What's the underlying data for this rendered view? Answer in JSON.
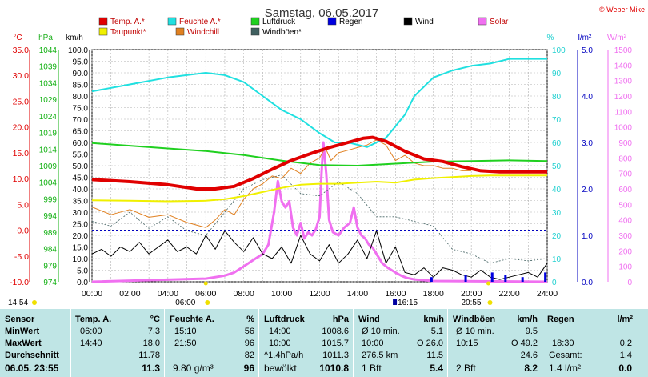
{
  "title": "Samstag, 06.05.2017",
  "copyright": "© Weber Mike",
  "legend": [
    {
      "label": "Temp. A.*",
      "color": "#e00000"
    },
    {
      "label": "Feuchte A.*",
      "color": "#20e0e0"
    },
    {
      "label": "Luftdruck",
      "color": "#20d020"
    },
    {
      "label": "Regen",
      "color": "#0000e0"
    },
    {
      "label": "Wind",
      "color": "#000000"
    },
    {
      "label": "Solar",
      "color": "#f070f0"
    },
    {
      "label": "Taupunkt*",
      "color": "#f0f000"
    },
    {
      "label": "Windchill",
      "color": "#e08020"
    },
    {
      "label": "Windböen*",
      "color": "#406060"
    }
  ],
  "axis_units": {
    "temp": "°C",
    "press": "hPa",
    "wind": "km/h",
    "hum": "%",
    "rain": "l/m²",
    "solar": "W/m²"
  },
  "chart_data": {
    "type": "line",
    "x_ticks": [
      "00:00",
      "02:00",
      "04:00",
      "06:00",
      "08:00",
      "10:00",
      "12:00",
      "14:00",
      "16:00",
      "18:00",
      "20:00",
      "22:00",
      "24:00"
    ],
    "axes": {
      "temp": {
        "min": -10,
        "max": 35,
        "ticks": [
          "35.0",
          "30.0",
          "25.0",
          "20.0",
          "15.0",
          "10.0",
          "5.0",
          "0.0",
          "-5.0",
          "-10.0"
        ]
      },
      "press": {
        "min": 974,
        "max": 1044,
        "ticks": [
          "1044",
          "1039",
          "1034",
          "1029",
          "1024",
          "1019",
          "1014",
          "1009",
          "1004",
          "999",
          "994",
          "989",
          "984",
          "979",
          "974"
        ]
      },
      "wind": {
        "min": 0,
        "max": 100,
        "ticks": [
          "100.0",
          "95.0",
          "90.0",
          "85.0",
          "80.0",
          "75.0",
          "70.0",
          "65.0",
          "60.0",
          "55.0",
          "50.0",
          "45.0",
          "40.0",
          "35.0",
          "30.0",
          "25.0",
          "20.0",
          "15.0",
          "10.0",
          "5.0",
          "0.0"
        ]
      },
      "hum": {
        "min": 0,
        "max": 100,
        "ticks": [
          "100",
          "90",
          "80",
          "70",
          "60",
          "50",
          "40",
          "30",
          "20",
          "10",
          "0"
        ]
      },
      "rain": {
        "min": 0,
        "max": 5,
        "ticks": [
          "5.0",
          "4.0",
          "3.0",
          "2.0",
          "1.0",
          "0.0"
        ]
      },
      "solar": {
        "min": 0,
        "max": 1500,
        "ticks": [
          "1500",
          "1400",
          "1300",
          "1200",
          "1100",
          "1000",
          "900",
          "800",
          "700",
          "600",
          "500",
          "400",
          "300",
          "200",
          "100",
          "0"
        ]
      }
    },
    "series": [
      {
        "name": "Temp. A.*",
        "axis": "temp",
        "x": [
          0,
          2,
          4,
          5.5,
          6.5,
          7.5,
          8.5,
          9.5,
          10.5,
          11.5,
          12.5,
          13.5,
          14.3,
          14.8,
          15.5,
          16.5,
          17.5,
          18.5,
          19.5,
          20.5,
          21.5,
          22.5,
          24
        ],
        "y": [
          9.8,
          9.4,
          8.8,
          8.0,
          8.0,
          8.5,
          10.0,
          11.8,
          13.5,
          14.8,
          16.0,
          17.0,
          17.8,
          18.0,
          17.2,
          15.3,
          13.8,
          13.3,
          12.3,
          11.5,
          11.3,
          11.3,
          11.3
        ]
      },
      {
        "name": "Feuchte A.*",
        "axis": "hum",
        "x": [
          0,
          2,
          4,
          6,
          7,
          8,
          9,
          10,
          11,
          12,
          12.8,
          13.5,
          14.5,
          15.5,
          16.5,
          17,
          18,
          19,
          20,
          21,
          22,
          23,
          24
        ],
        "y": [
          82,
          85,
          88,
          90,
          89,
          86,
          80,
          74,
          70,
          64,
          60,
          60,
          58,
          62,
          72,
          80,
          88,
          91,
          93,
          94,
          96,
          96,
          96
        ]
      },
      {
        "name": "Luftdruck",
        "axis": "press",
        "x": [
          0,
          2,
          4,
          6,
          8,
          10,
          12,
          14,
          16,
          18,
          20,
          22,
          24
        ],
        "y": [
          1015.8,
          1015.0,
          1014.2,
          1013.4,
          1012.2,
          1010.5,
          1009.2,
          1009.0,
          1009.6,
          1010.2,
          1010.4,
          1010.6,
          1010.4
        ]
      },
      {
        "name": "Taupunkt*",
        "axis": "temp",
        "x": [
          0,
          2,
          4,
          6,
          7,
          8,
          9,
          10,
          11,
          12,
          13,
          14,
          15,
          16,
          17,
          18,
          19,
          20,
          21,
          22,
          23,
          24
        ],
        "y": [
          5.8,
          5.7,
          5.6,
          5.7,
          6.0,
          6.6,
          7.4,
          8.2,
          8.8,
          9.0,
          9.0,
          9.2,
          9.4,
          9.2,
          9.8,
          10.1,
          10.3,
          10.5,
          10.6,
          10.6,
          10.6,
          10.6
        ]
      },
      {
        "name": "Windchill",
        "axis": "temp",
        "x": [
          0,
          1,
          2,
          3,
          4,
          5,
          6,
          6.5,
          7,
          7.5,
          8,
          8.5,
          9,
          9.5,
          10,
          10.5,
          11,
          11.5,
          12,
          12.3,
          12.6,
          13,
          13.5,
          14,
          14.5,
          15,
          15.5,
          16,
          16.5,
          17,
          17.5,
          18,
          18.5,
          19,
          19.5,
          20
        ],
        "y": [
          4.5,
          3.0,
          4.0,
          2.5,
          3.0,
          1.5,
          0.5,
          2.0,
          4.0,
          3.0,
          6.0,
          8.0,
          9.0,
          10.5,
          10.0,
          12.0,
          11.0,
          13.0,
          14.0,
          16.0,
          13.5,
          15.0,
          15.5,
          16.0,
          16.5,
          17.5,
          16.5,
          13.5,
          14.5,
          13.0,
          12.5,
          12.5,
          12.0,
          12.0,
          11.5,
          11.5
        ]
      },
      {
        "name": "Wind",
        "axis": "wind",
        "x": [
          0,
          0.5,
          1,
          1.5,
          2,
          2.5,
          3,
          3.5,
          4,
          4.5,
          5,
          5.5,
          6,
          6.5,
          7,
          7.5,
          8,
          8.5,
          9,
          9.5,
          10,
          10.5,
          11,
          11.5,
          12,
          12.5,
          13,
          13.5,
          14,
          14.5,
          15,
          15.5,
          16,
          16.5,
          17,
          17.5,
          18,
          18.5,
          19,
          19.5,
          20,
          20.5,
          21,
          21.5,
          22,
          22.5,
          23,
          23.5,
          24
        ],
        "y": [
          12,
          14,
          11,
          15,
          13,
          17,
          12,
          15,
          18,
          13,
          15,
          12,
          20,
          14,
          22,
          17,
          13,
          19,
          12,
          10,
          15,
          8,
          20,
          12,
          9,
          16,
          8,
          12,
          18,
          10,
          22,
          8,
          15,
          4,
          3,
          6,
          2,
          6,
          5,
          3,
          2,
          5,
          2,
          1,
          2,
          3,
          4,
          2,
          8
        ]
      },
      {
        "name": "Windböen*",
        "axis": "wind",
        "x": [
          0,
          1,
          2,
          3,
          4,
          5,
          6,
          7,
          8,
          9,
          10,
          11,
          12,
          13,
          14,
          15,
          16,
          17,
          18,
          19,
          20,
          21,
          22,
          23,
          24
        ],
        "y": [
          26,
          24,
          30,
          23,
          28,
          22,
          20,
          30,
          40,
          44,
          46,
          38,
          37,
          43,
          38,
          28,
          28,
          26,
          24,
          14,
          12,
          8,
          10,
          9,
          10
        ]
      },
      {
        "name": "Solar",
        "axis": "solar",
        "x": [
          0,
          6,
          7,
          7.5,
          8,
          8.5,
          9,
          9.3,
          9.6,
          9.8,
          10,
          10.2,
          10.4,
          10.6,
          10.8,
          11,
          11.2,
          11.4,
          11.6,
          11.8,
          12,
          12.1,
          12.2,
          12.35,
          12.5,
          12.7,
          13,
          13.3,
          13.6,
          13.8,
          14,
          14.2,
          14.4,
          14.6,
          14.8,
          15,
          15.3,
          15.6,
          16,
          16.3,
          16.6,
          17,
          18,
          24
        ],
        "y": [
          0,
          20,
          40,
          60,
          100,
          140,
          180,
          240,
          450,
          650,
          520,
          480,
          520,
          350,
          300,
          380,
          280,
          320,
          300,
          340,
          420,
          700,
          900,
          700,
          400,
          320,
          300,
          350,
          380,
          480,
          350,
          300,
          280,
          240,
          220,
          180,
          120,
          90,
          60,
          40,
          25,
          15,
          5,
          0
        ]
      }
    ],
    "rain": {
      "axis": "rain",
      "x": [
        17.9,
        19.7,
        21.1,
        21.8,
        22.7,
        23.9
      ],
      "y": [
        0.1,
        0.15,
        0.2,
        0.15,
        0.1,
        0.2
      ]
    }
  },
  "markers": {
    "sunrise_left": "14:54",
    "sunrise": "06:00",
    "sunset": "16:15",
    "moon": "20:55"
  },
  "table": {
    "headers": {
      "sensor": "Sensor",
      "temp": "Temp. A.",
      "temp_unit": "°C",
      "hum": "Feuchte A.",
      "hum_unit": "%",
      "press": "Luftdruck",
      "press_unit": "hPa",
      "wind": "Wind",
      "wind_unit": "km/h",
      "gust": "Windböen",
      "gust_unit": "km/h",
      "rain": "Regen",
      "rain_unit": "l/m²"
    },
    "min": {
      "label": "MinWert",
      "temp_t": "06:00",
      "temp_v": "7.3",
      "hum_t": "15:10",
      "hum_v": "56",
      "press_t": "14:00",
      "press_v": "1008.6",
      "wind_t": "Ø 10 min.",
      "wind_v": "5.1",
      "gust_t": "Ø 10 min.",
      "gust_v": "9.5",
      "rain_t": "",
      "rain_v": ""
    },
    "max": {
      "label": "MaxWert",
      "temp_t": "14:40",
      "temp_v": "18.0",
      "hum_t": "21:50",
      "hum_v": "96",
      "press_t": "10:00",
      "press_v": "1015.7",
      "wind_t": "10:00",
      "wind_m": "O 26.0",
      "gust_t": "10:15",
      "gust_m": "O 49.2",
      "rain_t": "18:30",
      "rain_v": "0.2"
    },
    "avg": {
      "label": "Durchschnitt",
      "temp_v": "11.78",
      "hum_v": "82",
      "press_t": "^1.4hPa/h",
      "press_v": "1011.3",
      "wind_t": "276.5 km",
      "wind_v": "11.5",
      "gust_v": "24.6",
      "rain_t": "Gesamt:",
      "rain_v": "1.4"
    },
    "cur": {
      "label": "06.05. 23:55",
      "temp_v": "11.3",
      "hum_t": "9.80 g/m³",
      "hum_v": "96",
      "press_t": "bewölkt",
      "press_v": "1010.8",
      "wind_t": "1 Bft",
      "wind_v": "5.4",
      "gust_t": "2 Bft",
      "gust_v": "8.2",
      "rain_t": "1.4 l/m²",
      "rain_v": "0.0"
    }
  }
}
